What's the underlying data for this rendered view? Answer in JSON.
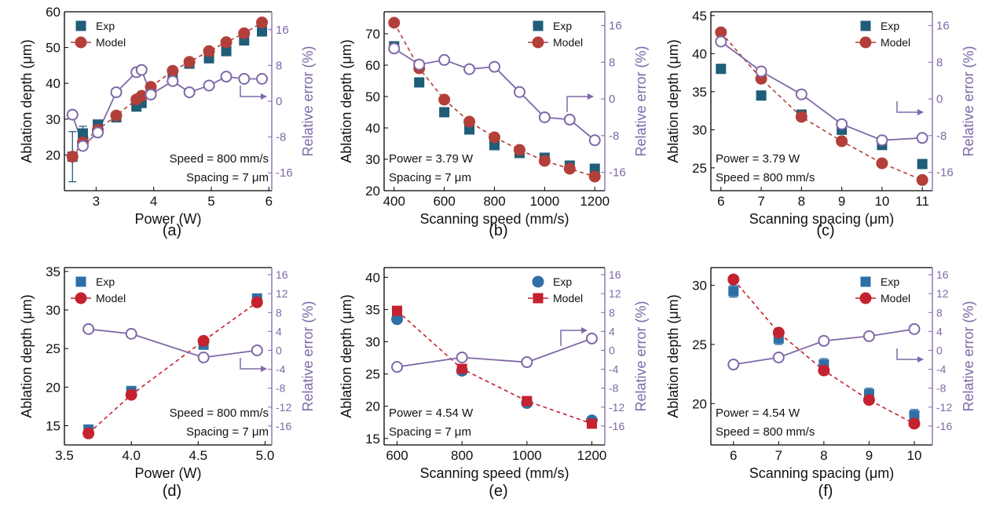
{
  "colors": {
    "exp_a": "#1f5d78",
    "model_a": "#b23f3a",
    "exp_b": "#2f6fa8",
    "model_b": "#c4222e",
    "error": "#7f68a8",
    "axis": "#000000"
  },
  "chart_data": [
    {
      "panel": "(a)",
      "type": "scatter",
      "xlabel": "Power (W)",
      "ylabel": "Ablation depth (μm)",
      "y2label": "Relative error (%)",
      "xlim": [
        2.45,
        6.05
      ],
      "ylim": [
        10,
        60
      ],
      "y2lim": [
        -20,
        20
      ],
      "xticks": [
        3,
        4,
        5,
        6
      ],
      "xticklabels": [
        "3",
        "4",
        "5",
        "6"
      ],
      "yticks": [
        20,
        30,
        40,
        50,
        60
      ],
      "yticklabels": [
        "20",
        "30",
        "40",
        "50",
        "60"
      ],
      "y2ticks": [
        -16,
        -8,
        0,
        8,
        16
      ],
      "y2ticklabels": [
        "-16",
        "-8",
        "0",
        "8",
        "16"
      ],
      "legend": [
        {
          "label": "Exp"
        },
        {
          "label": "Model"
        }
      ],
      "annotations": [
        "Speed = 800 mm/s",
        "Spacing = 7 μm"
      ],
      "legend_pos": "top-left",
      "annotation_pos": "bottom-right",
      "exp_marker": "square",
      "model_marker": "circle",
      "x": [
        2.59,
        2.77,
        3.03,
        3.35,
        3.7,
        3.79,
        3.95,
        4.33,
        4.62,
        4.96,
        5.26,
        5.57,
        5.88
      ],
      "series": [
        {
          "name": "Exp",
          "values": [
            19.5,
            26,
            28.5,
            30.5,
            33.5,
            34.5,
            38,
            42,
            45.5,
            47,
            49,
            52,
            54.5
          ],
          "err": [
            7,
            2,
            1,
            1,
            1,
            1,
            1,
            1,
            1,
            1,
            1,
            1,
            1
          ]
        },
        {
          "name": "Model",
          "values": [
            19.5,
            23.5,
            27,
            31,
            35.5,
            36.5,
            39,
            43.5,
            46,
            49,
            51.5,
            54,
            57
          ]
        },
        {
          "name": "Relative error",
          "axis": "right",
          "values": [
            -3,
            -10,
            -7,
            2,
            6.5,
            7,
            1.5,
            4.5,
            2,
            3.5,
            5.5,
            5,
            5
          ]
        }
      ],
      "error_arrow": "right"
    },
    {
      "panel": "(b)",
      "type": "scatter",
      "xlabel": "Scanning speed (mm/s)",
      "ylabel": "Ablation depth (μm)",
      "y2label": "Relative error (%)",
      "xlim": [
        360,
        1240
      ],
      "ylim": [
        20,
        77
      ],
      "y2lim": [
        -20,
        19
      ],
      "xticks": [
        400,
        600,
        800,
        1000,
        1200
      ],
      "xticklabels": [
        "400",
        "600",
        "800",
        "1000",
        "1200"
      ],
      "yticks": [
        20,
        30,
        40,
        50,
        60,
        70
      ],
      "yticklabels": [
        "20",
        "30",
        "40",
        "50",
        "60",
        "70"
      ],
      "y2ticks": [
        -16,
        -8,
        0,
        8,
        16
      ],
      "y2ticklabels": [
        "-16",
        "-8",
        "0",
        "8",
        "16"
      ],
      "legend": [
        {
          "label": "Exp"
        },
        {
          "label": "Model"
        }
      ],
      "annotations": [
        "Power = 3.79 W",
        "Spacing = 7 μm"
      ],
      "legend_pos": "top-right",
      "annotation_pos": "bottom-left",
      "exp_marker": "square",
      "model_marker": "circle",
      "x": [
        400,
        500,
        600,
        700,
        800,
        900,
        1000,
        1100,
        1200
      ],
      "series": [
        {
          "name": "Exp",
          "values": [
            66,
            54.5,
            45,
            39.5,
            34.5,
            32,
            30.5,
            28,
            27
          ],
          "err": [
            1,
            1,
            1,
            1,
            1,
            1,
            1,
            1,
            1
          ]
        },
        {
          "name": "Model",
          "values": [
            73.5,
            59,
            49,
            42,
            37,
            33,
            29.5,
            27,
            24.5
          ]
        },
        {
          "name": "Relative error",
          "axis": "right",
          "values": [
            11,
            7.5,
            8.5,
            6.5,
            7,
            1.5,
            -4,
            -4.5,
            -9
          ]
        }
      ],
      "error_arrow": "right"
    },
    {
      "panel": "(c)",
      "type": "scatter",
      "xlabel": "Scanning spacing (μm)",
      "ylabel": "Ablation depth (μm)",
      "y2label": "Relative error (%)",
      "xlim": [
        5.75,
        11.25
      ],
      "ylim": [
        22,
        45.5
      ],
      "y2lim": [
        -20,
        19
      ],
      "xticks": [
        6,
        7,
        8,
        9,
        10,
        11
      ],
      "xticklabels": [
        "6",
        "7",
        "8",
        "9",
        "10",
        "11"
      ],
      "yticks": [
        25,
        30,
        35,
        40,
        45
      ],
      "yticklabels": [
        "25",
        "30",
        "35",
        "40",
        "45"
      ],
      "y2ticks": [
        -16,
        -8,
        0,
        8,
        16
      ],
      "y2ticklabels": [
        "-16",
        "-8",
        "0",
        "8",
        "16"
      ],
      "legend": [
        {
          "label": "Exp"
        },
        {
          "label": "Model"
        }
      ],
      "annotations": [
        "Power = 3.79 W",
        "Speed = 800 mm/s"
      ],
      "legend_pos": "top-right",
      "annotation_pos": "bottom-left",
      "exp_marker": "square",
      "model_marker": "circle",
      "x": [
        6,
        7,
        8,
        9,
        10,
        11
      ],
      "series": [
        {
          "name": "Exp",
          "values": [
            38,
            34.5,
            32,
            30,
            28,
            25.5
          ],
          "err": [
            0.5,
            0.5,
            0.5,
            0.5,
            0.5,
            0.5
          ]
        },
        {
          "name": "Model",
          "values": [
            42.8,
            36.7,
            31.7,
            28.5,
            25.6,
            23.4
          ]
        },
        {
          "name": "Relative error",
          "axis": "right",
          "values": [
            12.5,
            6,
            1,
            -5.5,
            -9,
            -8.5
          ]
        }
      ],
      "error_arrow": "right"
    },
    {
      "panel": "(d)",
      "type": "scatter",
      "xlabel": "Power (W)",
      "ylabel": "Ablation depth (μm)",
      "y2label": "Relative error (%)",
      "xlim": [
        3.5,
        5.05
      ],
      "ylim": [
        12.5,
        35.5
      ],
      "y2lim": [
        -20,
        17.5
      ],
      "xticks": [
        3.5,
        4.0,
        4.5,
        5.0
      ],
      "xticklabels": [
        "3.5",
        "4.0",
        "4.5",
        "5.0"
      ],
      "yticks": [
        15,
        20,
        25,
        30,
        35
      ],
      "yticklabels": [
        "15",
        "20",
        "25",
        "30",
        "35"
      ],
      "y2ticks": [
        -16,
        -12,
        -8,
        -4,
        0,
        4,
        8,
        12,
        16
      ],
      "y2ticklabels": [
        "-16",
        "-12",
        "-8",
        "-4",
        "0",
        "4",
        "8",
        "12",
        "16"
      ],
      "legend": [
        {
          "label": "Exp"
        },
        {
          "label": "Model"
        }
      ],
      "annotations": [
        "Speed = 800 mm/s",
        "Spacing = 7 μm"
      ],
      "legend_pos": "top-left",
      "annotation_pos": "bottom-right",
      "exp_marker": "square",
      "model_marker": "circle",
      "x": [
        3.68,
        4.0,
        4.54,
        4.94
      ],
      "series": [
        {
          "name": "Exp",
          "values": [
            14.5,
            19.5,
            25.5,
            31.5
          ],
          "err": [
            0.5,
            0.5,
            0.5,
            0.5
          ]
        },
        {
          "name": "Model",
          "values": [
            14,
            19,
            26,
            31
          ]
        },
        {
          "name": "Relative error",
          "axis": "right",
          "values": [
            4.5,
            3.5,
            -1.5,
            0
          ]
        }
      ],
      "error_arrow": "right"
    },
    {
      "panel": "(e)",
      "type": "scatter",
      "xlabel": "Scanning speed (mm/s)",
      "ylabel": "Ablation depth (μm)",
      "y2label": "Relative error (%)",
      "xlim": [
        560,
        1240
      ],
      "ylim": [
        14,
        41.5
      ],
      "y2lim": [
        -20,
        17.5
      ],
      "xticks": [
        600,
        800,
        1000,
        1200
      ],
      "xticklabels": [
        "600",
        "800",
        "1000",
        "1200"
      ],
      "yticks": [
        15,
        20,
        25,
        30,
        35,
        40
      ],
      "yticklabels": [
        "15",
        "20",
        "25",
        "30",
        "35",
        "40"
      ],
      "y2ticks": [
        -16,
        -12,
        -8,
        -4,
        0,
        4,
        8,
        12,
        16
      ],
      "y2ticklabels": [
        "-16",
        "-12",
        "-8",
        "-4",
        "0",
        "4",
        "8",
        "12",
        "16"
      ],
      "legend": [
        {
          "label": "Exp"
        },
        {
          "label": "Model"
        }
      ],
      "annotations": [
        "Power = 4.54 W",
        "Spacing = 7 μm"
      ],
      "legend_pos": "top-right",
      "annotation_pos": "bottom-left",
      "exp_marker": "circle",
      "model_marker": "square",
      "x": [
        600,
        800,
        1000,
        1200
      ],
      "series": [
        {
          "name": "Exp",
          "values": [
            33.5,
            25.5,
            20.5,
            17.8
          ],
          "err": [
            0.5,
            0.5,
            0.5,
            0.5
          ]
        },
        {
          "name": "Model",
          "values": [
            34.8,
            25.8,
            20.8,
            17.3
          ]
        },
        {
          "name": "Relative error",
          "axis": "right",
          "values": [
            -3.5,
            -1.5,
            -2.5,
            2.5
          ]
        }
      ],
      "error_arrow": "right"
    },
    {
      "panel": "(f)",
      "type": "scatter",
      "xlabel": "Scanning spacing (μm)",
      "ylabel": "Ablation depth (μm)",
      "y2label": "Relative error (%)",
      "xlim": [
        5.5,
        10.4
      ],
      "ylim": [
        16.5,
        31.5
      ],
      "y2lim": [
        -20,
        17.5
      ],
      "xticks": [
        6,
        7,
        8,
        9,
        10
      ],
      "xticklabels": [
        "6",
        "7",
        "8",
        "9",
        "10"
      ],
      "yticks": [
        20,
        25,
        30
      ],
      "yticklabels": [
        "20",
        "25",
        "30"
      ],
      "y2ticks": [
        -16,
        -12,
        -8,
        -4,
        0,
        4,
        8,
        12,
        16
      ],
      "y2ticklabels": [
        "-16",
        "-12",
        "-8",
        "-4",
        "0",
        "4",
        "8",
        "12",
        "16"
      ],
      "legend": [
        {
          "label": "Exp"
        },
        {
          "label": "Model"
        }
      ],
      "annotations": [
        "Power = 4.54 W",
        "Speed = 800 mm/s"
      ],
      "legend_pos": "top-right",
      "annotation_pos": "bottom-left",
      "exp_marker": "square",
      "model_marker": "circle",
      "x": [
        6,
        7,
        8,
        9,
        10
      ],
      "series": [
        {
          "name": "Exp",
          "values": [
            29.5,
            25.5,
            23.3,
            20.8,
            19
          ],
          "err": [
            0.5,
            0.5,
            0.5,
            0.5,
            0.5
          ]
        },
        {
          "name": "Model",
          "values": [
            30.5,
            26,
            22.8,
            20.3,
            18.3
          ]
        },
        {
          "name": "Relative error",
          "axis": "right",
          "values": [
            -3,
            -1.5,
            2,
            3,
            4.5
          ]
        }
      ],
      "error_arrow": "right"
    }
  ]
}
